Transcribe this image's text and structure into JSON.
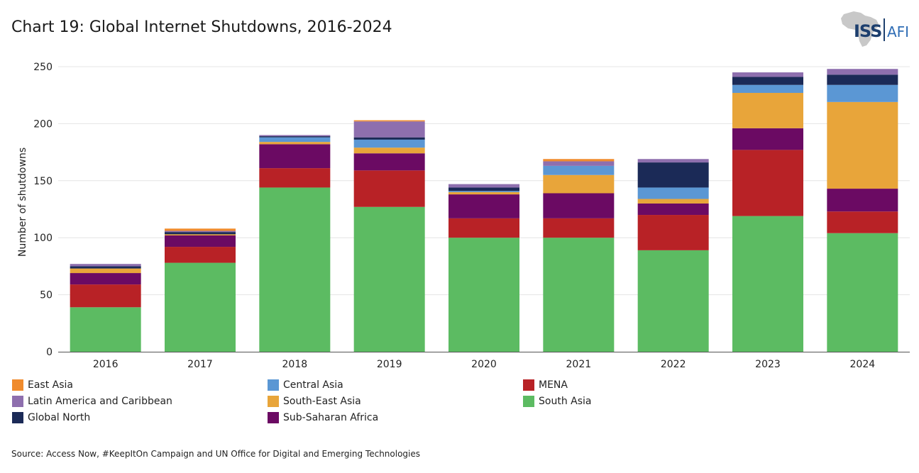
{
  "title": "Chart 19: Global Internet Shutdowns, 2016-2024",
  "logo": {
    "left_text": "ISS",
    "right_text": "AFI",
    "icon": "africa-map-icon"
  },
  "source": "Source: Access Now, #KeepItOn Campaign and UN Office for Digital and Emerging Technologies",
  "colors": {
    "South Asia": "#5cbb62",
    "MENA": "#b82226",
    "Sub-Saharan Africa": "#6b0a63",
    "South-East Asia": "#e8a53a",
    "Central Asia": "#5b97d4",
    "Global North": "#1b2a57",
    "Latin America and Caribbean": "#8e6fae",
    "East Asia": "#f08b2d"
  },
  "legend_order": [
    "East Asia",
    "Central Asia",
    "MENA",
    "Latin America and Caribbean",
    "South-East Asia",
    "South Asia",
    "Global North",
    "Sub-Saharan Africa"
  ],
  "chart_data": {
    "type": "bar",
    "stacked": true,
    "categories": [
      "2016",
      "2017",
      "2018",
      "2019",
      "2020",
      "2021",
      "2022",
      "2023",
      "2024"
    ],
    "ylabel": "Number of shutdowns",
    "xlabel": "",
    "ylim": [
      0,
      250
    ],
    "yticks": [
      0,
      50,
      100,
      150,
      200,
      250
    ],
    "grid": true,
    "legend_position": "bottom",
    "series": [
      {
        "name": "South Asia",
        "values": [
          39,
          78,
          144,
          127,
          100,
          100,
          89,
          119,
          104
        ]
      },
      {
        "name": "MENA",
        "values": [
          20,
          14,
          17,
          32,
          17,
          17,
          31,
          58,
          19
        ]
      },
      {
        "name": "Sub-Saharan Africa",
        "values": [
          10,
          10,
          21,
          15,
          21,
          22,
          10,
          19,
          20
        ]
      },
      {
        "name": "South-East Asia",
        "values": [
          4,
          1,
          2,
          5,
          2,
          16,
          4,
          31,
          76
        ]
      },
      {
        "name": "Central Asia",
        "values": [
          0,
          0,
          4,
          7,
          1,
          8,
          10,
          7,
          15
        ]
      },
      {
        "name": "Global North",
        "values": [
          2,
          2,
          1,
          2,
          3,
          0,
          22,
          7,
          9
        ]
      },
      {
        "name": "Latin America and Caribbean",
        "values": [
          2,
          1,
          1,
          14,
          3,
          4,
          3,
          4,
          5
        ]
      },
      {
        "name": "East Asia",
        "values": [
          0,
          2,
          0,
          1,
          0,
          2,
          0,
          0,
          0
        ]
      }
    ]
  }
}
